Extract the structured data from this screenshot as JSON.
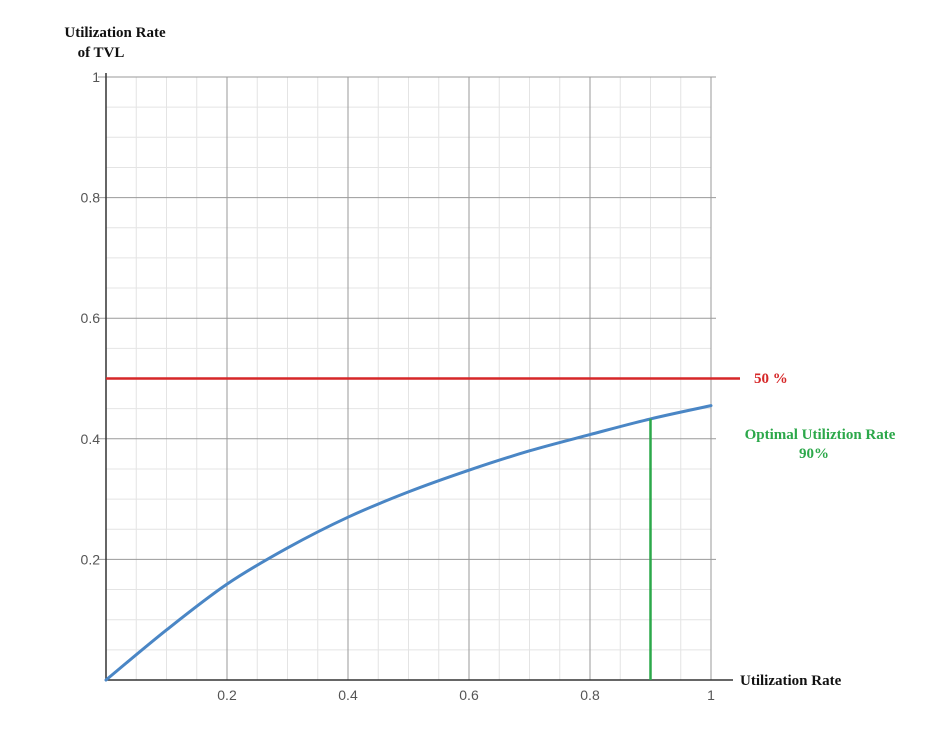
{
  "chart_data": {
    "type": "line",
    "title": "",
    "ylabel_line1": "Utilization Rate",
    "ylabel_line2": "of TVL",
    "xlabel": "Utilization Rate",
    "xlim": [
      0,
      1
    ],
    "ylim": [
      0,
      1
    ],
    "grid": true,
    "x_ticks": [
      0.2,
      0.4,
      0.6,
      0.8,
      1
    ],
    "x_tick_labels": [
      "0.2",
      "0.4",
      "0.6",
      "0.8",
      "1"
    ],
    "y_ticks": [
      0.2,
      0.4,
      0.6,
      0.8,
      1
    ],
    "y_tick_labels": [
      "0.2",
      "0.4",
      "0.6",
      "0.8",
      "1"
    ],
    "series": [
      {
        "color": "#4a86c5",
        "x": [
          0,
          0.1,
          0.2,
          0.3,
          0.4,
          0.5,
          0.6,
          0.7,
          0.8,
          0.9,
          1.0
        ],
        "y": [
          0,
          0.083,
          0.159,
          0.219,
          0.27,
          0.312,
          0.348,
          0.38,
          0.407,
          0.433,
          0.455
        ]
      }
    ],
    "annotations": {
      "hline": {
        "y": 0.5,
        "label": "50 %",
        "color": "#d62728"
      },
      "vline": {
        "x": 0.9,
        "y_top": 0.433,
        "label_line1": "Optimal Utiliztion Rate",
        "label_line2": "90%",
        "color": "#2ca84a"
      }
    }
  }
}
